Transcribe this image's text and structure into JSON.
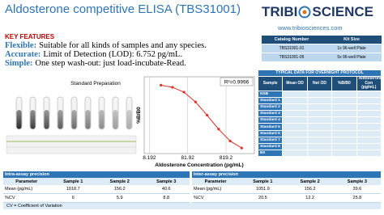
{
  "header": {
    "title": "Aldosterone competitive ELISA (TBS31001)",
    "logo_left": "TRIBI",
    "logo_right": "SCIENCE",
    "website": "www.tribiosciences.com"
  },
  "features": {
    "heading": "KEY FEATURES",
    "items": [
      {
        "label": "Flexible:",
        "text": "Suitable for all kinds of samples and any species."
      },
      {
        "label": "Accurate:",
        "text": "Limit of Detection (LOD): 6.752 pg/mL."
      },
      {
        "label": "Simple:",
        "text": "One step wash-out: just load-incubate-Read."
      }
    ]
  },
  "catalog": {
    "columns": [
      "Catalog Number",
      "Kit Size"
    ],
    "rows": [
      [
        "TBS31001-01",
        "1x 96-well Plate"
      ],
      [
        "TBS31001-05",
        "5x 96-well Plate"
      ]
    ]
  },
  "standard_prep": {
    "title": "Standard Preparation"
  },
  "chart_data": {
    "type": "line",
    "annotation": "R²=0.9996",
    "x_label": "Aldosterone Concentration (pg/mL)",
    "y_label": "%B/B0",
    "x": [
      16.384,
      32.768,
      65.536,
      131.072,
      262.144,
      524.288,
      1048.576,
      2097.152
    ],
    "series": [
      {
        "color": "#e0302a",
        "values": [
          98,
          95,
          88,
          74,
          55,
          35,
          18,
          8
        ]
      }
    ],
    "xlim": [
      6,
      4500
    ],
    "xticks": [
      8.192,
      81.92,
      819.2
    ],
    "ylim": [
      0,
      110
    ],
    "log_x": true,
    "grid": true
  },
  "typical_data": {
    "title": "TYPICAL DATA FOR OVERNIGHT PROTOCOL",
    "columns": [
      "Sample",
      "Mean OD",
      "Net OD",
      "%B/B0",
      "Aldosterone Con (pg/mL)"
    ],
    "rows": [
      "NSB",
      "Standard 1",
      "Standard 2",
      "Standard 3",
      "Standard 4",
      "Standard 5",
      "Standard 6",
      "Standard 7",
      "Standard 8",
      "B0"
    ]
  },
  "intra": {
    "title": "Intra-assay precision",
    "columns": [
      "Parameter",
      "Sample 1",
      "Sample 2",
      "Sample 3"
    ],
    "rows": [
      [
        "Mean (pg/mL)",
        1018.7,
        156.2,
        40.6
      ],
      [
        "%CV",
        6,
        5.9,
        8.8
      ]
    ]
  },
  "inter": {
    "title": "Inter-assay precision",
    "columns": [
      "Parameter",
      "Sample 1",
      "Sample 2",
      "Sample 3"
    ],
    "rows": [
      [
        "Mean (pg/mL)",
        1051.9,
        156.2,
        39.6
      ],
      [
        "%CV",
        20.5,
        12.2,
        25.8
      ]
    ]
  },
  "footnote": "CV = Coefficient of Variation"
}
